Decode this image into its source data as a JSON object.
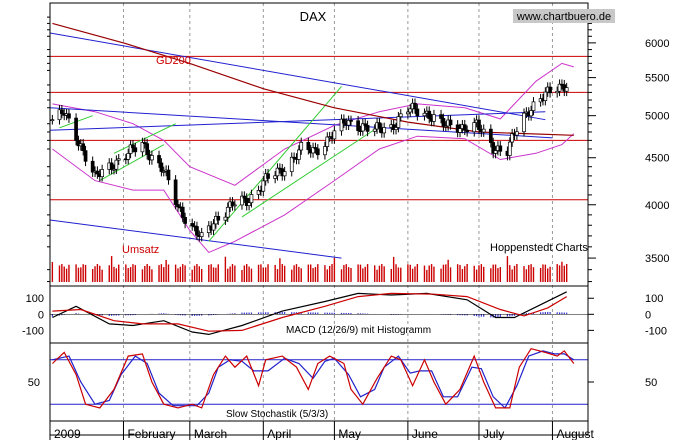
{
  "chart_data": {
    "type": "candlestick",
    "title": "DAX",
    "source_label": "www.chartbuero.de",
    "provider_label": "Hoppenstedt Charts",
    "ma_label": "GD200",
    "volume_label": "Umsatz",
    "month_labels": [
      "2009",
      "February",
      "March",
      "April",
      "May",
      "June",
      "July",
      "August"
    ],
    "price_axis": {
      "scale": "log",
      "range": [
        3280,
        6450
      ],
      "ticks": [
        3500,
        4000,
        4500,
        5000,
        5500,
        6000
      ],
      "tick_labels": [
        "3500",
        "4000",
        "4500",
        "5000",
        "5500",
        "6000"
      ]
    },
    "horizontal_levels": [
      5800,
      5300,
      4700,
      4050
    ],
    "trend_lines": [
      {
        "color": "#2020d0",
        "points": [
          [
            "2009-01-01",
            6150
          ],
          [
            "2009-07-29",
            4950
          ]
        ]
      },
      {
        "color": "#2020d0",
        "points": [
          [
            "2009-01-01",
            5100
          ],
          [
            "2009-08-01",
            4730
          ]
        ]
      },
      {
        "color": "#2020d0",
        "points": [
          [
            "2009-01-01",
            3850
          ],
          [
            "2009-05-04",
            3500
          ]
        ]
      },
      {
        "color": "#2020d0",
        "points": [
          [
            "2009-01-01",
            4820
          ],
          [
            "2009-07-29",
            5050
          ]
        ]
      },
      {
        "color": "#33cc33",
        "points": [
          [
            "2009-03-09",
            3650
          ],
          [
            "2009-05-04",
            5380
          ]
        ]
      },
      {
        "color": "#33cc33",
        "points": [
          [
            "2009-03-23",
            3880
          ],
          [
            "2009-05-18",
            4830
          ]
        ]
      },
      {
        "color": "#33cc33",
        "points": [
          [
            "2009-01-05",
            4850
          ],
          [
            "2009-01-19",
            5000
          ]
        ]
      },
      {
        "color": "#33cc33",
        "points": [
          [
            "2009-01-22",
            4250
          ],
          [
            "2009-02-18",
            4650
          ]
        ]
      },
      {
        "color": "#33cc33",
        "points": [
          [
            "2009-01-28",
            4550
          ],
          [
            "2009-02-23",
            4900
          ]
        ]
      }
    ],
    "ohlc_daily_pattern_note": "",
    "close_anchors": [
      [
        "2009-01-02",
        4950
      ],
      [
        "2009-01-07",
        5030
      ],
      [
        "2009-01-14",
        4640
      ],
      [
        "2009-01-20",
        4280
      ],
      [
        "2009-01-26",
        4400
      ],
      [
        "2009-02-02",
        4530
      ],
      [
        "2009-02-09",
        4660
      ],
      [
        "2009-02-13",
        4510
      ],
      [
        "2009-02-18",
        4350
      ],
      [
        "2009-02-24",
        3980
      ],
      [
        "2009-03-02",
        3780
      ],
      [
        "2009-03-06",
        3670
      ],
      [
        "2009-03-12",
        3860
      ],
      [
        "2009-03-19",
        4000
      ],
      [
        "2009-03-26",
        4050
      ],
      [
        "2009-04-02",
        4260
      ],
      [
        "2009-04-09",
        4360
      ],
      [
        "2009-04-17",
        4600
      ],
      [
        "2009-04-23",
        4570
      ],
      [
        "2009-04-30",
        4770
      ],
      [
        "2009-05-06",
        4920
      ],
      [
        "2009-05-13",
        4870
      ],
      [
        "2009-05-18",
        4820
      ],
      [
        "2009-05-25",
        4860
      ],
      [
        "2009-06-01",
        5080
      ],
      [
        "2009-06-05",
        5060
      ],
      [
        "2009-06-10",
        5020
      ],
      [
        "2009-06-17",
        4870
      ],
      [
        "2009-06-24",
        4860
      ],
      [
        "2009-06-30",
        4880
      ],
      [
        "2009-07-07",
        4620
      ],
      [
        "2009-07-13",
        4580
      ],
      [
        "2009-07-16",
        4770
      ],
      [
        "2009-07-22",
        5080
      ],
      [
        "2009-07-27",
        5230
      ],
      [
        "2009-08-03",
        5350
      ],
      [
        "2009-08-07",
        5420
      ]
    ],
    "gd200": [
      [
        "2009-01-02",
        6300
      ],
      [
        "2009-02-01",
        6000
      ],
      [
        "2009-03-01",
        5700
      ],
      [
        "2009-04-01",
        5350
      ],
      [
        "2009-05-01",
        5100
      ],
      [
        "2009-06-01",
        4920
      ],
      [
        "2009-07-01",
        4800
      ],
      [
        "2009-08-10",
        4760
      ]
    ],
    "bollinger_upper": [
      [
        "2009-01-02",
        5150
      ],
      [
        "2009-01-20",
        5050
      ],
      [
        "2009-02-05",
        4900
      ],
      [
        "2009-02-18",
        4700
      ],
      [
        "2009-03-01",
        4400
      ],
      [
        "2009-03-20",
        4200
      ],
      [
        "2009-04-10",
        4600
      ],
      [
        "2009-05-01",
        4880
      ],
      [
        "2009-05-20",
        5050
      ],
      [
        "2009-06-05",
        5150
      ],
      [
        "2009-06-25",
        5100
      ],
      [
        "2009-07-10",
        4960
      ],
      [
        "2009-07-25",
        5450
      ],
      [
        "2009-08-05",
        5700
      ],
      [
        "2009-08-10",
        5650
      ]
    ],
    "bollinger_lower": [
      [
        "2009-01-02",
        4600
      ],
      [
        "2009-01-20",
        4250
      ],
      [
        "2009-02-05",
        4150
      ],
      [
        "2009-02-18",
        4150
      ],
      [
        "2009-03-01",
        3750
      ],
      [
        "2009-03-09",
        3550
      ],
      [
        "2009-03-20",
        3650
      ],
      [
        "2009-04-10",
        3900
      ],
      [
        "2009-05-01",
        4250
      ],
      [
        "2009-05-20",
        4600
      ],
      [
        "2009-06-05",
        4750
      ],
      [
        "2009-06-25",
        4720
      ],
      [
        "2009-07-10",
        4480
      ],
      [
        "2009-07-25",
        4550
      ],
      [
        "2009-08-05",
        4650
      ],
      [
        "2009-08-10",
        4780
      ]
    ],
    "macd_axis": {
      "range": [
        -160,
        170
      ],
      "ticks": [
        100,
        0,
        -100
      ],
      "tick_labels": [
        "100",
        "0",
        "-100"
      ]
    },
    "macd_label": "MACD (12/26/9) mit Histogramm",
    "macd": [
      [
        "2009-01-02",
        -20
      ],
      [
        "2009-01-12",
        50
      ],
      [
        "2009-01-26",
        -60
      ],
      [
        "2009-02-05",
        -70
      ],
      [
        "2009-02-18",
        -40
      ],
      [
        "2009-03-02",
        -110
      ],
      [
        "2009-03-09",
        -125
      ],
      [
        "2009-03-23",
        -70
      ],
      [
        "2009-04-09",
        20
      ],
      [
        "2009-04-27",
        80
      ],
      [
        "2009-05-11",
        130
      ],
      [
        "2009-05-25",
        120
      ],
      [
        "2009-06-09",
        130
      ],
      [
        "2009-06-26",
        90
      ],
      [
        "2009-07-08",
        -20
      ],
      [
        "2009-07-16",
        -20
      ],
      [
        "2009-07-27",
        60
      ],
      [
        "2009-08-07",
        140
      ]
    ],
    "macd_signal": [
      [
        "2009-01-02",
        20
      ],
      [
        "2009-01-14",
        30
      ],
      [
        "2009-01-28",
        -40
      ],
      [
        "2009-02-09",
        -60
      ],
      [
        "2009-02-24",
        -60
      ],
      [
        "2009-03-09",
        -105
      ],
      [
        "2009-03-23",
        -100
      ],
      [
        "2009-04-09",
        -20
      ],
      [
        "2009-04-27",
        50
      ],
      [
        "2009-05-11",
        110
      ],
      [
        "2009-05-25",
        130
      ],
      [
        "2009-06-12",
        125
      ],
      [
        "2009-06-26",
        110
      ],
      [
        "2009-07-10",
        30
      ],
      [
        "2009-07-20",
        -10
      ],
      [
        "2009-07-30",
        40
      ],
      [
        "2009-08-07",
        110
      ]
    ],
    "stoch_axis": {
      "range": [
        0,
        100
      ],
      "ticks": [
        50
      ],
      "tick_labels": [
        "50"
      ],
      "levels": [
        80,
        20
      ]
    },
    "stoch_label": "Slow Stochastik (5/3/3)",
    "stoch_k": [
      [
        "2009-01-02",
        75
      ],
      [
        "2009-01-07",
        90
      ],
      [
        "2009-01-12",
        60
      ],
      [
        "2009-01-16",
        20
      ],
      [
        "2009-01-22",
        15
      ],
      [
        "2009-01-28",
        40
      ],
      [
        "2009-02-03",
        85
      ],
      [
        "2009-02-09",
        88
      ],
      [
        "2009-02-13",
        50
      ],
      [
        "2009-02-18",
        20
      ],
      [
        "2009-02-24",
        15
      ],
      [
        "2009-03-02",
        20
      ],
      [
        "2009-03-06",
        15
      ],
      [
        "2009-03-11",
        60
      ],
      [
        "2009-03-16",
        85
      ],
      [
        "2009-03-20",
        70
      ],
      [
        "2009-03-25",
        85
      ],
      [
        "2009-03-30",
        45
      ],
      [
        "2009-04-02",
        80
      ],
      [
        "2009-04-09",
        85
      ],
      [
        "2009-04-15",
        70
      ],
      [
        "2009-04-20",
        40
      ],
      [
        "2009-04-24",
        75
      ],
      [
        "2009-04-29",
        85
      ],
      [
        "2009-05-05",
        75
      ],
      [
        "2009-05-08",
        40
      ],
      [
        "2009-05-13",
        20
      ],
      [
        "2009-05-19",
        55
      ],
      [
        "2009-05-25",
        85
      ],
      [
        "2009-05-29",
        80
      ],
      [
        "2009-06-03",
        45
      ],
      [
        "2009-06-08",
        80
      ],
      [
        "2009-06-12",
        50
      ],
      [
        "2009-06-17",
        20
      ],
      [
        "2009-06-23",
        40
      ],
      [
        "2009-06-29",
        85
      ],
      [
        "2009-07-03",
        50
      ],
      [
        "2009-07-08",
        15
      ],
      [
        "2009-07-14",
        15
      ],
      [
        "2009-07-18",
        70
      ],
      [
        "2009-07-23",
        95
      ],
      [
        "2009-07-29",
        90
      ],
      [
        "2009-08-03",
        85
      ],
      [
        "2009-08-06",
        92
      ],
      [
        "2009-08-10",
        75
      ]
    ],
    "stoch_d": [
      [
        "2009-01-02",
        80
      ],
      [
        "2009-01-09",
        85
      ],
      [
        "2009-01-14",
        50
      ],
      [
        "2009-01-20",
        20
      ],
      [
        "2009-01-26",
        25
      ],
      [
        "2009-01-31",
        60
      ],
      [
        "2009-02-06",
        85
      ],
      [
        "2009-02-11",
        75
      ],
      [
        "2009-02-16",
        35
      ],
      [
        "2009-02-22",
        18
      ],
      [
        "2009-02-27",
        18
      ],
      [
        "2009-03-04",
        18
      ],
      [
        "2009-03-09",
        35
      ],
      [
        "2009-03-13",
        70
      ],
      [
        "2009-03-18",
        80
      ],
      [
        "2009-03-23",
        78
      ],
      [
        "2009-03-28",
        65
      ],
      [
        "2009-04-03",
        65
      ],
      [
        "2009-04-10",
        82
      ],
      [
        "2009-04-16",
        75
      ],
      [
        "2009-04-22",
        55
      ],
      [
        "2009-04-27",
        78
      ],
      [
        "2009-05-01",
        82
      ],
      [
        "2009-05-07",
        60
      ],
      [
        "2009-05-12",
        30
      ],
      [
        "2009-05-18",
        40
      ],
      [
        "2009-05-22",
        70
      ],
      [
        "2009-05-28",
        85
      ],
      [
        "2009-06-02",
        62
      ],
      [
        "2009-06-06",
        65
      ],
      [
        "2009-06-11",
        65
      ],
      [
        "2009-06-16",
        30
      ],
      [
        "2009-06-22",
        30
      ],
      [
        "2009-06-28",
        70
      ],
      [
        "2009-07-02",
        68
      ],
      [
        "2009-07-07",
        30
      ],
      [
        "2009-07-12",
        15
      ],
      [
        "2009-07-17",
        45
      ],
      [
        "2009-07-22",
        85
      ],
      [
        "2009-07-28",
        92
      ],
      [
        "2009-08-02",
        88
      ],
      [
        "2009-08-06",
        88
      ],
      [
        "2009-08-10",
        80
      ]
    ],
    "colors": {
      "ma": "#990000",
      "bollinger": "#cc33cc",
      "levels": "#cc0000",
      "volume": "#cc0000",
      "candle": "#000000",
      "macd_line": "#000000",
      "macd_signal": "#cc0000",
      "macd_hist": "#3333cc",
      "stoch_k": "#cc0000",
      "stoch_d": "#2222cc",
      "stoch_levels": "#2222cc",
      "grid": "#999999",
      "source_bg": "#c8c8c8"
    }
  }
}
